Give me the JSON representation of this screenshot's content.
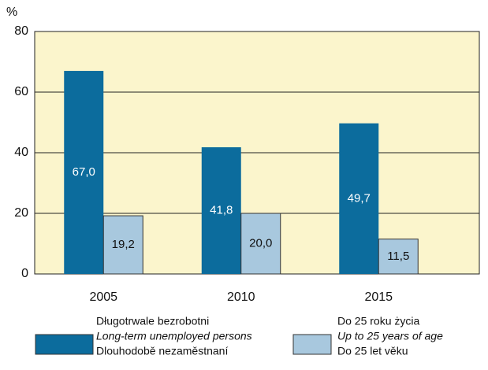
{
  "chart_data": {
    "type": "bar",
    "y_unit": "%",
    "categories": [
      "2005",
      "2010",
      "2015"
    ],
    "series": [
      {
        "name": "Długotrwale bezrobotni",
        "name_english": "Long-term unemployed persons",
        "name_czech": "Dlouhodobě nezaměstnaní",
        "color": "#0c6c9d",
        "values": [
          67.0,
          41.8,
          49.7
        ],
        "value_labels": [
          "67,0",
          "41,8",
          "49,7"
        ]
      },
      {
        "name": "Do 25 roku życia",
        "name_english": "Up to 25 years of age",
        "name_czech": "Do 25 let věku",
        "color": "#a8c8de",
        "values": [
          19.2,
          20.0,
          11.5
        ],
        "value_labels": [
          "19,2",
          "20,0",
          "11,5"
        ]
      }
    ],
    "ylim": [
      0,
      80
    ],
    "yticks": [
      0,
      20,
      40,
      60,
      80
    ],
    "grid": true,
    "plot_background": "#fbf5cc"
  }
}
